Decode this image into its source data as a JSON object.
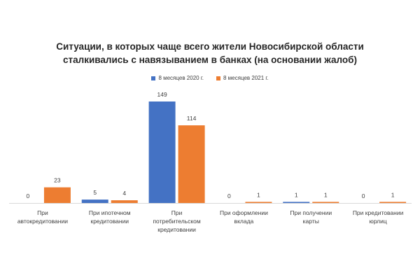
{
  "chart_data": {
    "type": "bar",
    "title_lines": [
      "Ситуации, в которых чаще всего жители Новосибирской области",
      "сталкивались с навязыванием в банках (на основании жалоб)"
    ],
    "categories": [
      [
        "При",
        "автокредитовании"
      ],
      [
        "При ипотечном",
        "кредитовании"
      ],
      [
        "При",
        "потребительском",
        "кредитовании"
      ],
      [
        "При оформлении",
        "вклада"
      ],
      [
        "При получении",
        "карты"
      ],
      [
        "При кредитовании",
        "юрлиц"
      ]
    ],
    "series": [
      {
        "name": "8 месяцев  2020 г.",
        "color": "#4472C4",
        "values": [
          0,
          5,
          149,
          0,
          1,
          0
        ]
      },
      {
        "name": "8 месяцев  2021 г.",
        "color": "#ED7D31",
        "values": [
          23,
          4,
          114,
          1,
          1,
          1
        ]
      }
    ],
    "ylim": [
      0,
      149
    ],
    "legend_position": "top",
    "grid": false
  }
}
